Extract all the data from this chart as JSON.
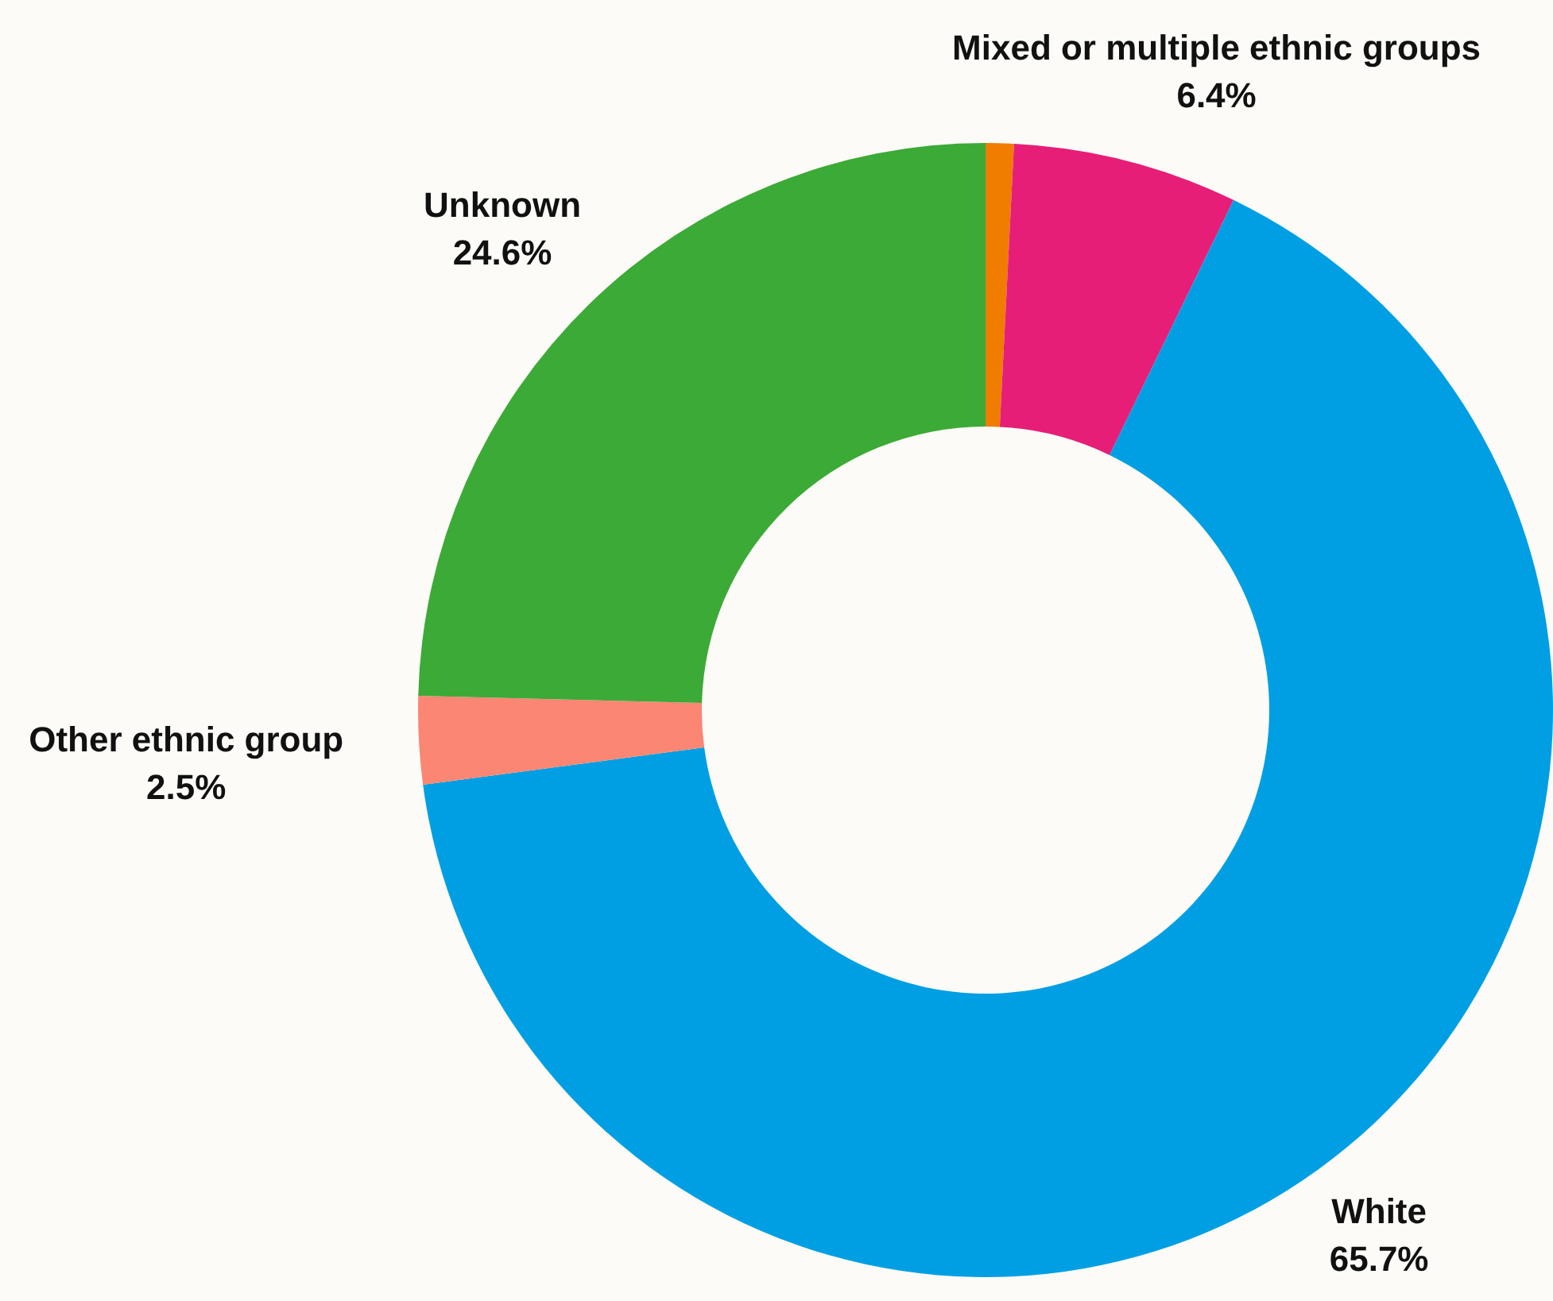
{
  "chart_data": {
    "type": "donut",
    "categories": [
      null,
      "Mixed or multiple ethnic groups",
      "White",
      "Other ethnic group",
      "Unknown"
    ],
    "values": [
      0.8,
      6.4,
      65.7,
      2.5,
      24.6
    ],
    "colors": [
      "#f07c00",
      "#e61e78",
      "#009fe3",
      "#fa8673",
      "#3caa36"
    ],
    "value_labels": [
      null,
      "6.4%",
      "65.7%",
      "2.5%",
      "24.6%"
    ]
  }
}
